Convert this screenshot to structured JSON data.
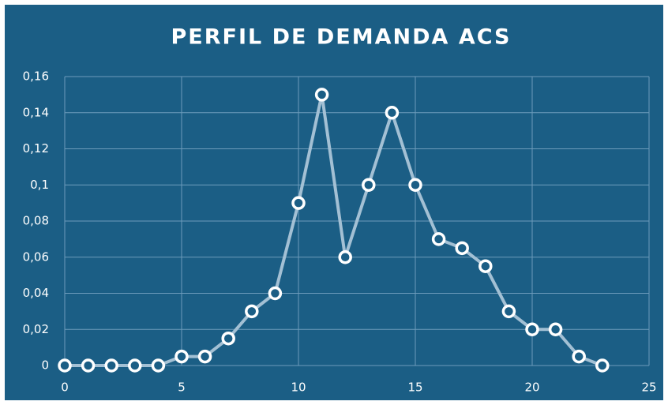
{
  "chart_data": {
    "type": "line",
    "title": "PERFIL DE DEMANDA ACS",
    "x": [
      0,
      1,
      2,
      3,
      4,
      5,
      6,
      7,
      8,
      9,
      10,
      11,
      12,
      13,
      14,
      15,
      16,
      17,
      18,
      19,
      20,
      21,
      22,
      23
    ],
    "series": [
      {
        "color": "#a3c0d4",
        "values": [
          0,
          0,
          0,
          0,
          0,
          0.005,
          0.005,
          0.015,
          0.03,
          0.04,
          0.09,
          0.15,
          0.06,
          0.1,
          0.14,
          0.1,
          0.07,
          0.065,
          0.055,
          0.03,
          0.02,
          0.02,
          0.005,
          0
        ]
      }
    ],
    "xlim": [
      0,
      25
    ],
    "xticks": [
      0,
      5,
      10,
      15,
      20,
      25
    ],
    "ylim": [
      0,
      0.16
    ],
    "yticks": [
      0,
      {
        "value": 0.02,
        "label": "0,02"
      },
      {
        "value": 0.04,
        "label": "0,04"
      },
      {
        "value": 0.06,
        "label": "0,06"
      },
      {
        "value": 0.08,
        "label": "0,08"
      },
      {
        "value": 0.1,
        "label": "0,1"
      },
      {
        "value": 0.12,
        "label": "0,12"
      },
      {
        "value": 0.14,
        "label": "0,14"
      },
      {
        "value": 0.16,
        "label": "0,16"
      }
    ],
    "grid": true,
    "background": "#1b5e85"
  }
}
